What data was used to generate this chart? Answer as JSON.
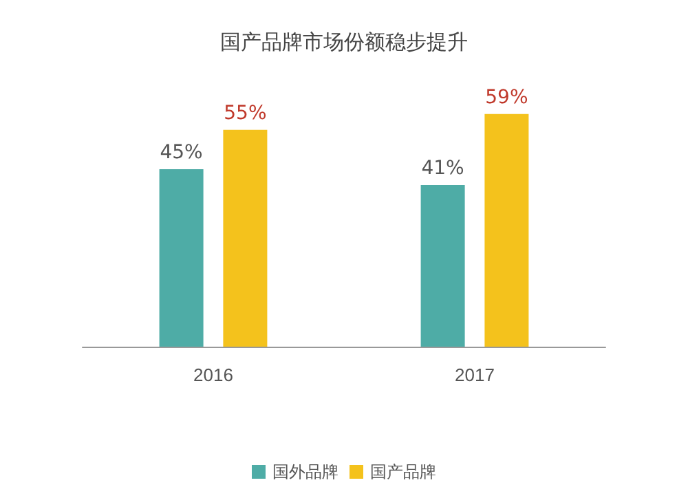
{
  "chart_data": {
    "type": "bar",
    "title": "国产品牌市场份额稳步提升",
    "categories": [
      "2016",
      "2017"
    ],
    "series": [
      {
        "name": "国外品牌",
        "color": "#4eaca6",
        "values": [
          45,
          41
        ],
        "value_labels": [
          "45%",
          "41%"
        ]
      },
      {
        "name": "国产品牌",
        "color": "#f4c21c",
        "values": [
          55,
          59
        ],
        "value_labels": [
          "55%",
          "59%"
        ]
      }
    ],
    "legend": "bottom"
  }
}
